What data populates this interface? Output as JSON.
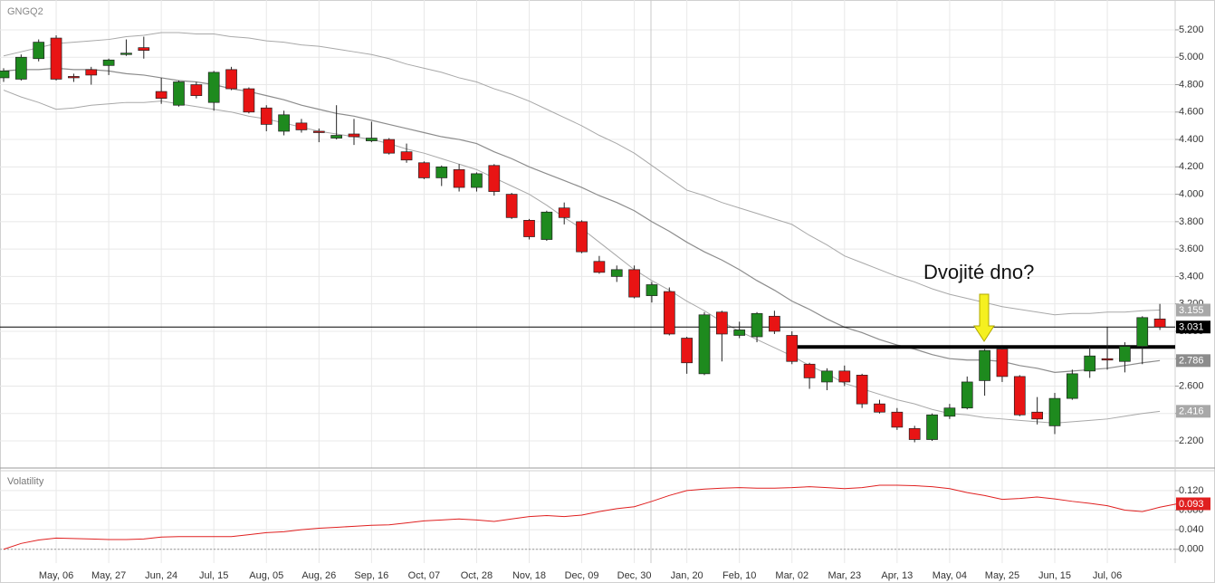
{
  "chart_data": [
    {
      "type": "candlestick",
      "title": "GNGQ2",
      "categories": [
        null,
        null,
        null,
        "May, 06",
        null,
        null,
        "May, 27",
        null,
        null,
        "Jun, 24",
        null,
        null,
        "Jul, 15",
        null,
        null,
        "Aug, 05",
        null,
        null,
        "Aug, 26",
        null,
        null,
        "Sep, 16",
        null,
        null,
        "Oct, 07",
        null,
        null,
        "Oct, 28",
        null,
        null,
        "Nov, 18",
        null,
        null,
        "Dec, 09",
        null,
        null,
        "Dec, 30",
        null,
        null,
        "Jan, 20",
        null,
        null,
        "Feb, 10",
        null,
        null,
        "Mar, 02",
        null,
        null,
        "Mar, 23",
        null,
        null,
        "Apr, 13",
        null,
        null,
        "May, 04",
        null,
        null,
        "May, 25",
        null,
        null,
        "Jun, 15",
        null,
        null,
        "Jul, 06",
        null,
        null,
        null
      ],
      "open": [
        4.85,
        4.84,
        4.99,
        5.14,
        4.86,
        4.91,
        4.94,
        5.02,
        5.07,
        4.75,
        4.65,
        4.8,
        4.67,
        4.91,
        4.77,
        4.63,
        4.46,
        4.52,
        4.46,
        4.41,
        4.44,
        4.39,
        4.4,
        4.31,
        4.23,
        4.12,
        4.18,
        4.05,
        4.21,
        4.0,
        3.81,
        3.67,
        3.9,
        3.8,
        3.51,
        3.4,
        3.45,
        3.26,
        3.29,
        2.95,
        2.69,
        3.14,
        2.97,
        2.96,
        3.11,
        2.97,
        2.76,
        2.63,
        2.71,
        2.68,
        2.47,
        2.41,
        2.29,
        2.21,
        2.38,
        2.44,
        2.64,
        2.87,
        2.67,
        2.41,
        2.31,
        2.51,
        2.71,
        2.8,
        2.78,
        2.89,
        3.09
      ],
      "high": [
        4.92,
        5.02,
        5.13,
        5.16,
        4.88,
        4.93,
        4.99,
        5.13,
        5.15,
        4.85,
        4.83,
        4.82,
        4.9,
        4.93,
        4.78,
        4.65,
        4.61,
        4.55,
        4.48,
        4.65,
        4.55,
        4.53,
        4.41,
        4.37,
        4.24,
        4.21,
        4.22,
        4.16,
        4.22,
        4.01,
        3.82,
        3.88,
        3.94,
        3.81,
        3.55,
        3.48,
        3.48,
        3.36,
        3.32,
        2.96,
        3.14,
        3.15,
        3.07,
        3.14,
        3.15,
        3.0,
        2.77,
        2.73,
        2.75,
        2.69,
        2.5,
        2.44,
        2.31,
        2.4,
        2.47,
        2.67,
        2.87,
        2.88,
        2.68,
        2.52,
        2.55,
        2.72,
        2.89,
        3.03,
        2.92,
        3.11,
        3.2
      ],
      "low": [
        4.82,
        4.83,
        4.97,
        4.83,
        4.82,
        4.8,
        4.87,
        5.01,
        4.99,
        4.66,
        4.64,
        4.7,
        4.61,
        4.76,
        4.59,
        4.46,
        4.43,
        4.45,
        4.38,
        4.4,
        4.36,
        4.38,
        4.29,
        4.23,
        4.11,
        4.06,
        4.02,
        4.02,
        3.99,
        3.82,
        3.67,
        3.66,
        3.78,
        3.57,
        3.42,
        3.36,
        3.24,
        3.21,
        2.97,
        2.69,
        2.68,
        2.78,
        2.95,
        2.92,
        2.98,
        2.76,
        2.58,
        2.57,
        2.6,
        2.44,
        2.4,
        2.28,
        2.19,
        2.2,
        2.36,
        2.43,
        2.53,
        2.63,
        2.38,
        2.32,
        2.25,
        2.5,
        2.66,
        2.72,
        2.7,
        2.76,
        3.01
      ],
      "close": [
        4.9,
        5.0,
        5.11,
        4.84,
        4.85,
        4.87,
        4.98,
        5.03,
        5.05,
        4.7,
        4.82,
        4.72,
        4.89,
        4.77,
        4.6,
        4.51,
        4.58,
        4.47,
        4.45,
        4.43,
        4.42,
        4.41,
        4.3,
        4.25,
        4.12,
        4.2,
        4.05,
        4.15,
        4.02,
        3.83,
        3.69,
        3.87,
        3.83,
        3.58,
        3.43,
        3.45,
        3.25,
        3.34,
        2.98,
        2.77,
        3.12,
        2.98,
        3.01,
        3.13,
        3.0,
        2.78,
        2.66,
        2.71,
        2.63,
        2.47,
        2.41,
        2.3,
        2.21,
        2.39,
        2.44,
        2.63,
        2.86,
        2.67,
        2.39,
        2.36,
        2.51,
        2.69,
        2.82,
        2.79,
        2.89,
        3.1,
        3.031
      ],
      "up_color": "#1e8a1e",
      "down_color": "#e81414",
      "bands": {
        "color": "#a8a8a8",
        "middle_color": "#8c8c8c",
        "upper": [
          5.01,
          5.04,
          5.07,
          5.1,
          5.11,
          5.12,
          5.13,
          5.15,
          5.16,
          5.18,
          5.18,
          5.17,
          5.17,
          5.15,
          5.14,
          5.12,
          5.11,
          5.09,
          5.08,
          5.06,
          5.04,
          5.02,
          4.99,
          4.95,
          4.92,
          4.89,
          4.85,
          4.82,
          4.77,
          4.73,
          4.68,
          4.62,
          4.56,
          4.5,
          4.43,
          4.37,
          4.3,
          4.21,
          4.12,
          4.03,
          3.99,
          3.94,
          3.9,
          3.86,
          3.82,
          3.78,
          3.7,
          3.63,
          3.55,
          3.5,
          3.45,
          3.4,
          3.36,
          3.31,
          3.27,
          3.24,
          3.21,
          3.18,
          3.16,
          3.14,
          3.12,
          3.13,
          3.13,
          3.14,
          3.14,
          3.15,
          3.155
        ],
        "middle": [
          4.9,
          4.91,
          4.91,
          4.92,
          4.91,
          4.91,
          4.9,
          4.88,
          4.87,
          4.85,
          4.83,
          4.82,
          4.8,
          4.77,
          4.75,
          4.72,
          4.69,
          4.65,
          4.62,
          4.59,
          4.57,
          4.54,
          4.51,
          4.48,
          4.45,
          4.42,
          4.4,
          4.37,
          4.31,
          4.26,
          4.2,
          4.15,
          4.1,
          4.05,
          3.99,
          3.94,
          3.88,
          3.8,
          3.73,
          3.65,
          3.58,
          3.52,
          3.45,
          3.37,
          3.3,
          3.22,
          3.16,
          3.09,
          3.03,
          2.99,
          2.94,
          2.9,
          2.87,
          2.83,
          2.8,
          2.79,
          2.79,
          2.78,
          2.75,
          2.73,
          2.7,
          2.71,
          2.72,
          2.73,
          2.75,
          2.77,
          2.786
        ],
        "lower": [
          4.76,
          4.71,
          4.67,
          4.62,
          4.63,
          4.65,
          4.66,
          4.67,
          4.67,
          4.68,
          4.66,
          4.64,
          4.62,
          4.6,
          4.57,
          4.55,
          4.52,
          4.49,
          4.46,
          4.44,
          4.42,
          4.4,
          4.37,
          4.33,
          4.3,
          4.26,
          4.22,
          4.18,
          4.12,
          4.06,
          4.0,
          3.92,
          3.83,
          3.75,
          3.65,
          3.55,
          3.45,
          3.37,
          3.3,
          3.22,
          3.15,
          3.07,
          3.0,
          2.94,
          2.88,
          2.82,
          2.75,
          2.69,
          2.62,
          2.58,
          2.54,
          2.5,
          2.47,
          2.43,
          2.4,
          2.39,
          2.37,
          2.36,
          2.35,
          2.34,
          2.33,
          2.34,
          2.35,
          2.36,
          2.38,
          2.4,
          2.416
        ]
      },
      "ylim": [
        2.0,
        5.4
      ],
      "yticks": [
        {
          "value": 2.2,
          "label": "2.200"
        },
        {
          "value": 2.4,
          "label": "2.400"
        },
        {
          "value": 2.6,
          "label": "2.600"
        },
        {
          "value": 2.8,
          "label": "2.800"
        },
        {
          "value": 3.0,
          "label": "3.000"
        },
        {
          "value": 3.2,
          "label": "3.200"
        },
        {
          "value": 3.4,
          "label": "3.400"
        },
        {
          "value": 3.6,
          "label": "3.600"
        },
        {
          "value": 3.8,
          "label": "3.800"
        },
        {
          "value": 4.0,
          "label": "4.000"
        },
        {
          "value": 4.2,
          "label": "4.200"
        },
        {
          "value": 4.4,
          "label": "4.400"
        },
        {
          "value": 4.6,
          "label": "4.600"
        },
        {
          "value": 4.8,
          "label": "4.800"
        },
        {
          "value": 5.0,
          "label": "5.000"
        },
        {
          "value": 5.2,
          "label": "5.200"
        }
      ],
      "price_markers": [
        {
          "value": 3.155,
          "color": "#a8a8a8"
        },
        {
          "value": 3.031,
          "color": "#000000"
        },
        {
          "value": 2.786,
          "color": "#8c8c8c"
        },
        {
          "value": 2.416,
          "color": "#a8a8a8"
        }
      ],
      "current_price_marker": 1,
      "support_level": 2.886,
      "annotation": "Dvojité dno?",
      "grid": true
    },
    {
      "type": "line",
      "title": "Volatility",
      "color": "#e02020",
      "values": [
        0.0,
        0.012,
        0.019,
        0.023,
        0.022,
        0.021,
        0.02,
        0.02,
        0.021,
        0.025,
        0.026,
        0.026,
        0.026,
        0.026,
        0.03,
        0.034,
        0.036,
        0.04,
        0.043,
        0.045,
        0.047,
        0.049,
        0.05,
        0.054,
        0.058,
        0.06,
        0.062,
        0.06,
        0.057,
        0.062,
        0.067,
        0.069,
        0.067,
        0.07,
        0.077,
        0.083,
        0.087,
        0.098,
        0.11,
        0.12,
        0.123,
        0.125,
        0.126,
        0.125,
        0.125,
        0.126,
        0.128,
        0.126,
        0.124,
        0.126,
        0.131,
        0.131,
        0.13,
        0.128,
        0.124,
        0.116,
        0.11,
        0.102,
        0.104,
        0.107,
        0.103,
        0.098,
        0.094,
        0.089,
        0.08,
        0.077,
        0.086,
        0.093
      ],
      "ylim": [
        -0.03,
        0.16
      ],
      "yticks": [
        {
          "value": 0,
          "label": "0.000"
        },
        {
          "value": 0.04,
          "label": "0.040"
        },
        {
          "value": 0.08,
          "label": "0.080"
        },
        {
          "value": 0.12,
          "label": "0.120"
        }
      ],
      "price_marker": 0.093,
      "grid": true
    }
  ]
}
